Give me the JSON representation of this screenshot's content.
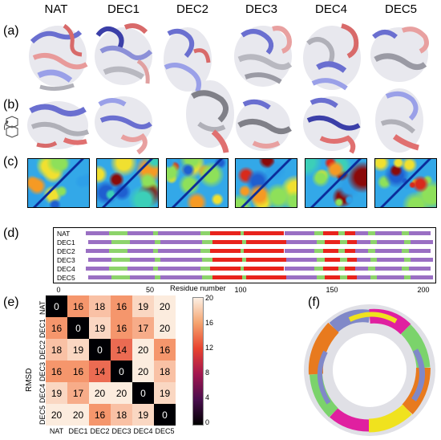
{
  "columns": [
    "NAT",
    "DEC1",
    "DEC2",
    "DEC3",
    "DEC4",
    "DEC5"
  ],
  "panels": {
    "a": "(a)",
    "b": "(b)",
    "c": "(c)",
    "d": "(d)",
    "e": "(e)",
    "f": "(f)"
  },
  "sequence": {
    "rows": [
      "NAT",
      "DEC1",
      "DEC2",
      "DEC3",
      "DEC4",
      "DEC5"
    ],
    "xlabel": "Residue number",
    "ticks": [
      "0",
      "50",
      "100",
      "150",
      "200"
    ],
    "colors": {
      "helix": "#e8231c",
      "strand": "#9a6fc3",
      "coil": "#8dd36b"
    }
  },
  "rmsd": {
    "labels": [
      "NAT",
      "DEC1",
      "DEC2",
      "DEC3",
      "DEC4",
      "DEC5"
    ],
    "matrix": [
      [
        0,
        16,
        18,
        16,
        19,
        20
      ],
      [
        16,
        0,
        19,
        16,
        17,
        20
      ],
      [
        18,
        19,
        0,
        14,
        20,
        16
      ],
      [
        16,
        16,
        14,
        0,
        20,
        18
      ],
      [
        19,
        17,
        20,
        20,
        0,
        19
      ],
      [
        20,
        20,
        16,
        18,
        19,
        0
      ]
    ],
    "ylabel": "RMSD",
    "colorbar_ticks": [
      "20",
      "16",
      "12",
      "8",
      "4",
      "0"
    ],
    "colorbar_range": [
      0,
      20
    ]
  }
}
